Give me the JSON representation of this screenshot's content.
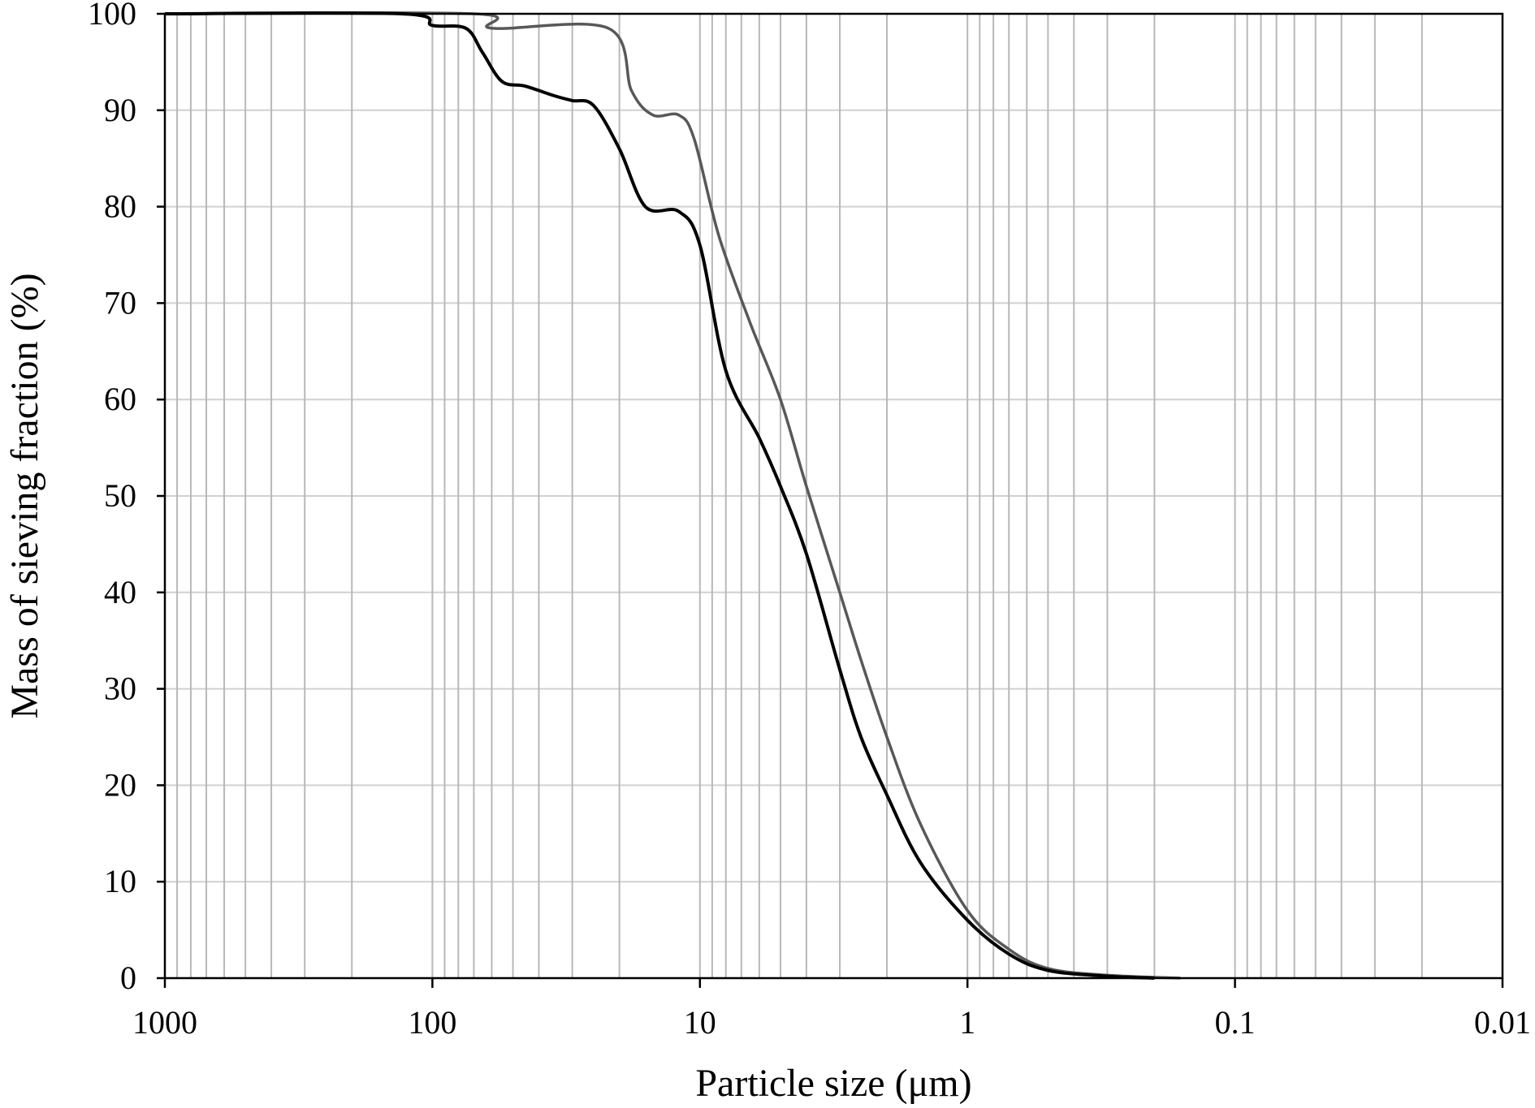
{
  "chart_data": {
    "type": "line",
    "title": "",
    "xlabel": "Particle size (μm)",
    "ylabel": "Mass of sieving fraction (%)",
    "x_scale": "log",
    "x_reversed": true,
    "xlim": [
      1000,
      0.01
    ],
    "ylim": [
      0,
      100
    ],
    "x_ticks": [
      1000,
      100,
      10,
      1,
      0.1,
      0.01
    ],
    "x_tick_labels": [
      "1000",
      "100",
      "10",
      "1",
      "0.1",
      "0.01"
    ],
    "y_ticks": [
      0,
      10,
      20,
      30,
      40,
      50,
      60,
      70,
      80,
      90,
      100
    ],
    "y_tick_labels": [
      "0",
      "10",
      "20",
      "30",
      "40",
      "50",
      "60",
      "70",
      "80",
      "90",
      "100"
    ],
    "grid": {
      "x_major": true,
      "x_minor": true,
      "y_major": true
    },
    "legend": "none",
    "series": [
      {
        "color": "#585858",
        "points": [
          [
            1000,
            100
          ],
          [
            70,
            100
          ],
          [
            60,
            98.5
          ],
          [
            22,
            98.5
          ],
          [
            18,
            92
          ],
          [
            15,
            89.5
          ],
          [
            12,
            89.5
          ],
          [
            10.5,
            87
          ],
          [
            8.5,
            77
          ],
          [
            6.5,
            68
          ],
          [
            5,
            60
          ],
          [
            4,
            51
          ],
          [
            3,
            40
          ],
          [
            2.5,
            33
          ],
          [
            2,
            25
          ],
          [
            1.5,
            16
          ],
          [
            1,
            7
          ],
          [
            0.7,
            3
          ],
          [
            0.5,
            1
          ],
          [
            0.3,
            0.3
          ],
          [
            0.16,
            0
          ]
        ]
      },
      {
        "color": "#000000",
        "points": [
          [
            1000,
            100
          ],
          [
            130,
            100
          ],
          [
            100,
            98.8
          ],
          [
            75,
            98.5
          ],
          [
            65,
            96
          ],
          [
            55,
            93
          ],
          [
            45,
            92.5
          ],
          [
            35,
            91.5
          ],
          [
            30,
            91
          ],
          [
            25,
            90.5
          ],
          [
            20,
            86
          ],
          [
            16,
            80
          ],
          [
            12,
            79.5
          ],
          [
            10,
            76
          ],
          [
            8,
            63
          ],
          [
            6,
            56
          ],
          [
            5,
            51
          ],
          [
            4,
            44
          ],
          [
            3,
            32
          ],
          [
            2.5,
            25
          ],
          [
            2,
            19
          ],
          [
            1.5,
            12
          ],
          [
            1,
            6
          ],
          [
            0.7,
            2.5
          ],
          [
            0.5,
            0.8
          ],
          [
            0.3,
            0.2
          ],
          [
            0.2,
            0
          ]
        ]
      }
    ]
  }
}
